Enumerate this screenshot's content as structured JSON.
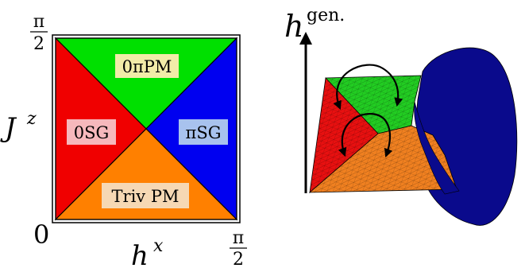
{
  "phase_diagram": {
    "y_axis_label": "J",
    "y_axis_superscript": "z",
    "x_axis_label": "h",
    "x_axis_superscript": "x",
    "origin_label": "0",
    "corner_pi": "π",
    "corner_two": "2",
    "regions": [
      {
        "key": "top",
        "label": "0πPM",
        "color": "#00e000",
        "label_bg": "#f2eca8"
      },
      {
        "key": "left",
        "label": "0SG",
        "color": "#f00000",
        "label_bg": "#f6b8bc"
      },
      {
        "key": "right",
        "label": "πSG",
        "color": "#0000f0",
        "label_bg": "#a8c2ee"
      },
      {
        "key": "bottom",
        "label": "Triv PM",
        "color": "#ff8000",
        "label_bg": "#f6d8b4"
      }
    ]
  },
  "surface_plot": {
    "axis_label": "h",
    "axis_superscript": "gen.",
    "colors": {
      "green": "#22cc22",
      "red": "#e81010",
      "orange": "#f08020",
      "blue": "#0a0a8c"
    }
  }
}
